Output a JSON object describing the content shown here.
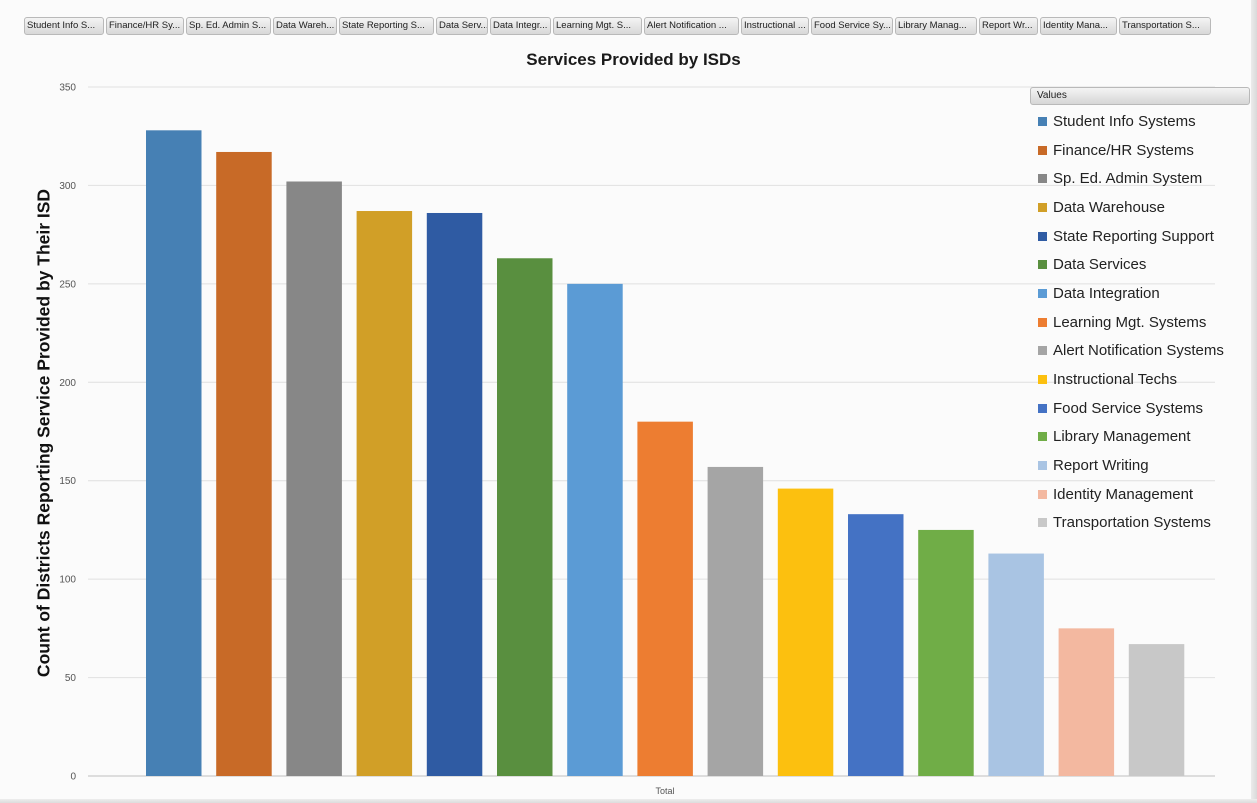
{
  "filter_buttons": [
    "Student Info S...",
    "Finance/HR Sy...",
    "Sp. Ed. Admin S...",
    "Data Wareh...",
    "State Reporting S...",
    "Data Serv...",
    "Data Integr...",
    "Learning Mgt. S...",
    "Alert Notification ...",
    "Instructional ...",
    "Food Service Sy...",
    "Library Manag...",
    "Report Wr...",
    "Identity Mana...",
    "Transportation S..."
  ],
  "legend_header": "Values",
  "chart_data": {
    "type": "bar",
    "title": "Services Provided by ISDs",
    "ylabel": "Count of Districts Reporting Service Provided by Their ISD",
    "xlabel": "",
    "categories": [
      "Total"
    ],
    "ylim": [
      0,
      350
    ],
    "yticks": [
      0,
      50,
      100,
      150,
      200,
      250,
      300,
      350
    ],
    "grid": true,
    "legend_position": "right",
    "series": [
      {
        "name": "Student Info Systems",
        "value": 328,
        "color": "#4680b4"
      },
      {
        "name": "Finance/HR Systems",
        "value": 317,
        "color": "#c86a27"
      },
      {
        "name": "Sp. Ed. Admin System",
        "value": 302,
        "color": "#878787"
      },
      {
        "name": "Data Warehouse",
        "value": 287,
        "color": "#d19f27"
      },
      {
        "name": "State Reporting Support",
        "value": 286,
        "color": "#2f5ba3"
      },
      {
        "name": "Data Services",
        "value": 263,
        "color": "#598f3f"
      },
      {
        "name": "Data Integration",
        "value": 250,
        "color": "#5b9bd5"
      },
      {
        "name": "Learning Mgt. Systems",
        "value": 180,
        "color": "#ed7d31"
      },
      {
        "name": "Alert Notification Systems",
        "value": 157,
        "color": "#a5a5a5"
      },
      {
        "name": "Instructional Techs",
        "value": 146,
        "color": "#fcc00f"
      },
      {
        "name": "Food Service Systems",
        "value": 133,
        "color": "#4472c4"
      },
      {
        "name": "Library Management",
        "value": 125,
        "color": "#70ad47"
      },
      {
        "name": "Report Writing",
        "value": 113,
        "color": "#a9c4e3"
      },
      {
        "name": "Identity Management",
        "value": 75,
        "color": "#f3b8a0"
      },
      {
        "name": "Transportation Systems",
        "value": 67,
        "color": "#c8c8c8"
      }
    ]
  }
}
